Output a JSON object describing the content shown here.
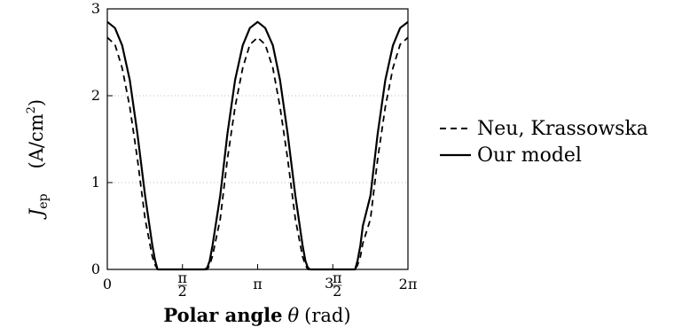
{
  "chart_data": {
    "type": "line",
    "xlabel": {
      "bold": "Polar angle",
      "symbol": "θ",
      "unit": "(rad)"
    },
    "ylabel": {
      "symbol": "J",
      "subscript": "ep",
      "unit_pre": "(A/cm",
      "unit_sup": "2",
      "unit_post": ")"
    },
    "xlim": [
      0,
      6.2832
    ],
    "ylim": [
      0,
      3
    ],
    "grid": "horizontal dotted",
    "legend_position": "right",
    "x_ticks": [
      {
        "value": 0,
        "label": "0"
      },
      {
        "value": 1.5708,
        "label": "π/2"
      },
      {
        "value": 3.1416,
        "label": "π"
      },
      {
        "value": 4.7124,
        "label": "3π/2"
      },
      {
        "value": 6.2832,
        "label": "2π"
      }
    ],
    "y_ticks": [
      {
        "value": 0,
        "label": "0"
      },
      {
        "value": 1,
        "label": "1"
      },
      {
        "value": 2,
        "label": "2"
      },
      {
        "value": 3,
        "label": "3"
      }
    ],
    "x": [
      0,
      0.16,
      0.31,
      0.47,
      0.63,
      0.79,
      0.94,
      1.0,
      1.05,
      1.1,
      1.15,
      1.21,
      1.5708,
      1.93,
      1.99,
      2.04,
      2.09,
      2.14,
      2.2,
      2.36,
      2.51,
      2.67,
      2.83,
      2.98,
      3.1416,
      3.3,
      3.46,
      3.61,
      3.77,
      3.93,
      4.08,
      4.14,
      4.19,
      4.24,
      4.29,
      4.35,
      4.7124,
      5.07,
      5.13,
      5.18,
      5.23,
      5.29,
      5.34,
      5.5,
      5.65,
      5.81,
      5.97,
      6.12,
      6.2832
    ],
    "series": [
      {
        "name": "Neu, Krassowska",
        "style": "dashed",
        "values": [
          2.67,
          2.59,
          2.32,
          1.87,
          1.27,
          0.58,
          0.15,
          0.05,
          0.0,
          0.0,
          0.0,
          0.0,
          0.0,
          0.0,
          0.0,
          0.0,
          0.0,
          0.05,
          0.16,
          0.58,
          1.27,
          1.87,
          2.32,
          2.59,
          2.67,
          2.59,
          2.32,
          1.87,
          1.27,
          0.58,
          0.15,
          0.05,
          0.0,
          0.0,
          0.0,
          0.0,
          0.0,
          0.0,
          0.0,
          0.0,
          0.05,
          0.15,
          0.3,
          0.58,
          1.27,
          1.87,
          2.32,
          2.59,
          2.67
        ]
      },
      {
        "name": "Our model",
        "style": "solid",
        "values": [
          2.85,
          2.78,
          2.58,
          2.18,
          1.56,
          0.85,
          0.28,
          0.1,
          0.0,
          0.0,
          0.0,
          0.0,
          0.0,
          0.0,
          0.0,
          0.0,
          0.02,
          0.1,
          0.28,
          0.85,
          1.56,
          2.18,
          2.58,
          2.78,
          2.85,
          2.78,
          2.58,
          2.18,
          1.56,
          0.85,
          0.28,
          0.1,
          0.02,
          0.0,
          0.0,
          0.0,
          0.0,
          0.0,
          0.0,
          0.0,
          0.1,
          0.28,
          0.5,
          0.85,
          1.56,
          2.18,
          2.58,
          2.78,
          2.85
        ]
      }
    ]
  }
}
